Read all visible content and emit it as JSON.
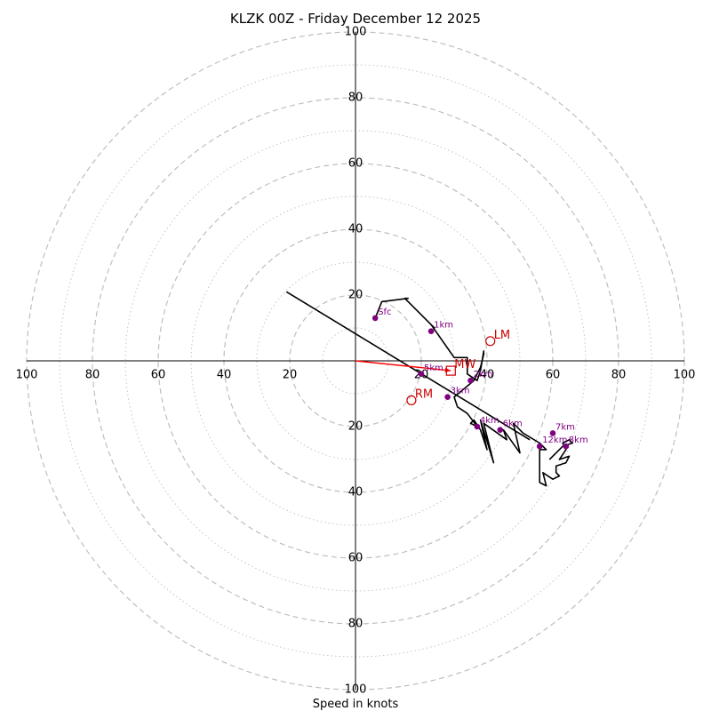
{
  "chart_data": {
    "type": "hodograph",
    "title": "KLZK 00Z - Friday December 12 2025",
    "xlabel": "Speed in knots",
    "units": "knots",
    "max_speed": 100,
    "ring_step_major": 20,
    "ring_step_minor": 10,
    "tick_labels": [
      "20",
      "40",
      "60",
      "80",
      "100"
    ],
    "colors": {
      "trace": "#000000",
      "height_markers": "#800080",
      "motion_markers": "#cc0000",
      "shear_vector": "#ff0000",
      "grid": "#bfbfbf"
    },
    "trace": [
      [
        6,
        13
      ],
      [
        8,
        18
      ],
      [
        16,
        19
      ],
      [
        15,
        19
      ],
      [
        20,
        14
      ],
      [
        24,
        10
      ],
      [
        23,
        11
      ],
      [
        30,
        1
      ],
      [
        34,
        1
      ],
      [
        34,
        -4
      ],
      [
        37,
        -6
      ],
      [
        38,
        -3
      ],
      [
        39,
        3
      ],
      [
        39,
        2
      ],
      [
        38,
        -2
      ],
      [
        36,
        -6
      ],
      [
        30,
        -11
      ],
      [
        31,
        -14
      ],
      [
        34,
        -16
      ],
      [
        37,
        -20
      ],
      [
        35,
        -19
      ],
      [
        36,
        -18
      ],
      [
        38,
        -21
      ],
      [
        40,
        -27
      ],
      [
        38,
        -18
      ],
      [
        42,
        -31
      ],
      [
        39,
        -19
      ],
      [
        46,
        -24
      ],
      [
        45,
        -21
      ],
      [
        50,
        -28
      ],
      [
        48,
        -19
      ],
      [
        51,
        -22
      ],
      [
        56,
        -25
      ],
      [
        58,
        -27
      ],
      [
        56,
        -27
      ],
      [
        56,
        -37
      ],
      [
        58,
        -38
      ],
      [
        57,
        -34
      ],
      [
        60,
        -36
      ],
      [
        62,
        -35
      ],
      [
        61,
        -34
      ],
      [
        61,
        -32
      ],
      [
        64,
        -31
      ],
      [
        65,
        -29
      ],
      [
        62,
        -30
      ],
      [
        64,
        -27
      ],
      [
        63,
        -25
      ],
      [
        65,
        -24
      ],
      [
        66,
        -25
      ],
      [
        63,
        -26
      ],
      [
        62,
        -27
      ],
      [
        59,
        -30
      ]
    ],
    "height_markers": [
      {
        "label": "Sfc",
        "u": 6,
        "v": 13
      },
      {
        "label": "1km",
        "u": 23,
        "v": 9
      },
      {
        "label": "2km",
        "u": 35,
        "v": -6
      },
      {
        "label": "3km",
        "u": 28,
        "v": -11
      },
      {
        "label": "4km",
        "u": 37,
        "v": -20
      },
      {
        "label": "6km",
        "u": 44,
        "v": -21
      },
      {
        "label": "7km",
        "u": 60,
        "v": -22
      },
      {
        "label": "8km",
        "u": 64,
        "v": -26
      },
      {
        "label": "12km",
        "u": 56,
        "v": -26
      },
      {
        "label": "5km",
        "u": 20,
        "v": -4
      }
    ],
    "storm_motions": [
      {
        "label": "LM",
        "u": 41,
        "v": 6,
        "shape": "circle"
      },
      {
        "label": "RM",
        "u": 17,
        "v": -12,
        "shape": "circle"
      },
      {
        "label": "MW",
        "u": 29,
        "v": -3,
        "shape": "square"
      }
    ],
    "shear_vector": {
      "from": [
        0,
        0
      ],
      "to": [
        29,
        -3
      ]
    },
    "extended_line": {
      "from": [
        -21,
        21
      ],
      "to": [
        53,
        -24
      ]
    }
  }
}
